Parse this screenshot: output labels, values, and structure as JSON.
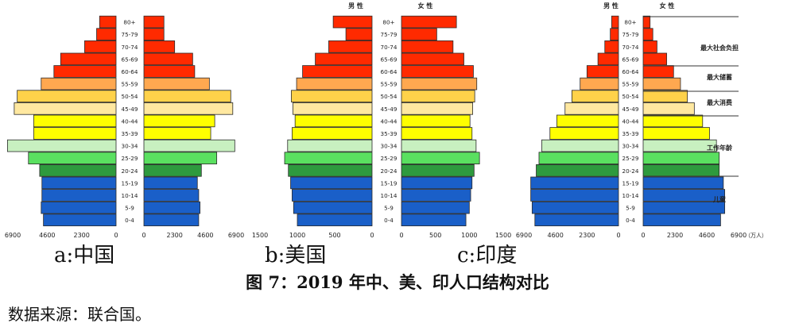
{
  "caption": "图 7：2019 年中、美、印人口结构对比",
  "source": "数据来源：联合国。",
  "age_groups": [
    "0-4",
    "5-9",
    "10-14",
    "15-19",
    "20-24",
    "25-29",
    "30-34",
    "35-39",
    "40-44",
    "45-49",
    "50-54",
    "55-59",
    "60-64",
    "65-69",
    "70-74",
    "75-79",
    "80+"
  ],
  "colors": [
    "#1a5fc8",
    "#1a5fc8",
    "#1a5fc8",
    "#1a5fc8",
    "#2e9a3e",
    "#5ae060",
    "#c8f0c0",
    "#ffff00",
    "#ffff00",
    "#ffe8a0",
    "#ffd24a",
    "#ffa850",
    "#ff2a00",
    "#ff2a00",
    "#ff2a00",
    "#ff2a00",
    "#ff2a00"
  ],
  "chart_data": [
    {
      "type": "bar",
      "subtitle": "a:中国",
      "series": [
        {
          "name": "",
          "side": "left",
          "values": [
            4850,
            5000,
            4950,
            4950,
            5100,
            5850,
            7250,
            5500,
            5500,
            6800,
            6600,
            5000,
            4150,
            3700,
            2100,
            1300,
            1100
          ]
        },
        {
          "name": "",
          "side": "right",
          "values": [
            4100,
            4200,
            4100,
            4000,
            4300,
            5450,
            6800,
            5000,
            5300,
            6650,
            6500,
            4900,
            3800,
            3650,
            2300,
            1500,
            1500
          ]
        }
      ],
      "left_ticks": [
        "6900",
        "4600",
        "2300",
        "0"
      ],
      "right_ticks": [
        "0",
        "2300",
        "4600",
        "6900"
      ],
      "xlim": [
        0,
        6900
      ]
    },
    {
      "type": "bar",
      "subtitle": "b:美国",
      "series": [
        {
          "name": "男 性",
          "side": "left",
          "values": [
            1000,
            1050,
            1070,
            1090,
            1120,
            1170,
            1130,
            1070,
            1030,
            1060,
            1080,
            1010,
            930,
            760,
            580,
            350,
            520
          ]
        },
        {
          "name": "女 性",
          "side": "right",
          "values": [
            950,
            1000,
            1020,
            1040,
            1070,
            1150,
            1100,
            1040,
            1010,
            1050,
            1080,
            1110,
            1060,
            920,
            760,
            520,
            810
          ]
        }
      ],
      "left_ticks": [
        "1500",
        "1000",
        "500",
        "0"
      ],
      "right_ticks": [
        "0",
        "500",
        "1000",
        "1500"
      ],
      "xlim": [
        0,
        1500
      ]
    },
    {
      "type": "bar",
      "subtitle": "c:印度",
      "series": [
        {
          "name": "男 性",
          "side": "left",
          "values": [
            6100,
            6300,
            6400,
            6400,
            6000,
            5800,
            5600,
            5000,
            4500,
            3900,
            3400,
            2800,
            2300,
            1500,
            1000,
            600,
            500
          ]
        },
        {
          "name": "女 性",
          "side": "right",
          "values": [
            5600,
            5900,
            5900,
            5800,
            5500,
            5500,
            5300,
            4800,
            4300,
            3700,
            3200,
            2700,
            2200,
            1700,
            1000,
            700,
            500
          ]
        }
      ],
      "left_ticks": [
        "6900",
        "4600",
        "2300",
        "0"
      ],
      "right_ticks": [
        "0",
        "2300",
        "4600",
        "6900"
      ],
      "unit": "（万人）",
      "xlim": [
        0,
        6900
      ],
      "annotations": [
        "最大社会负担",
        "最大储蓄",
        "最大消费",
        "工作年龄",
        "儿童"
      ]
    }
  ]
}
